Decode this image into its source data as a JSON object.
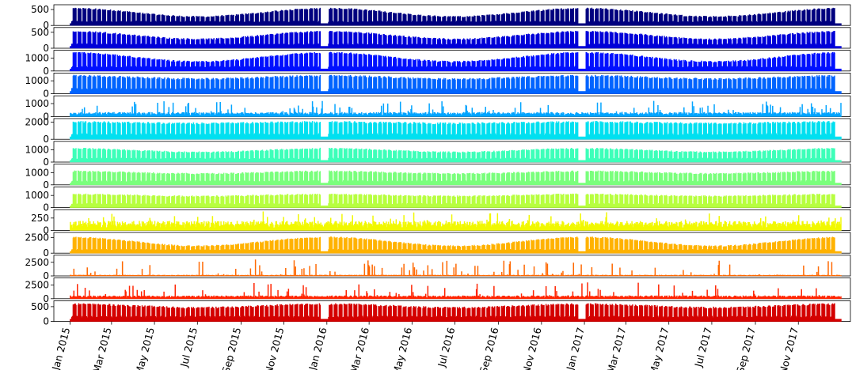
{
  "chart_data": {
    "type": "area",
    "x_start": "2015-01-01",
    "x_end": "2017-12-31",
    "x_tick_labels": [
      "Jan 2015",
      "Mar 2015",
      "May 2015",
      "Jul 2015",
      "Sep 2015",
      "Nov 2015",
      "Jan 2016",
      "Mar 2016",
      "May 2016",
      "Jul 2016",
      "Sep 2016",
      "Nov 2016",
      "Jan 2017",
      "Mar 2017",
      "May 2017",
      "Jul 2017",
      "Sep 2017",
      "Nov 2017"
    ],
    "x_tick_dates": [
      "2015-01-01",
      "2015-03-01",
      "2015-05-01",
      "2015-07-01",
      "2015-09-01",
      "2015-11-01",
      "2016-01-01",
      "2016-03-01",
      "2016-05-01",
      "2016-07-01",
      "2016-09-01",
      "2016-11-01",
      "2017-01-01",
      "2017-03-01",
      "2017-05-01",
      "2017-07-01",
      "2017-09-01",
      "2017-11-01"
    ],
    "grid": false,
    "panels": [
      {
        "color": "#00007f",
        "ylim": [
          0,
          650
        ],
        "yticks": [
          0,
          500
        ],
        "ytick_labels": [
          "0",
          "500"
        ],
        "base": 400,
        "seasonal": 130,
        "spiky": false
      },
      {
        "color": "#0000d8",
        "ylim": [
          0,
          650
        ],
        "yticks": [
          0,
          500
        ],
        "ytick_labels": [
          "0",
          "500"
        ],
        "base": 400,
        "seasonal": 120,
        "spiky": false
      },
      {
        "color": "#0010ff",
        "ylim": [
          0,
          1600
        ],
        "yticks": [
          0,
          1000
        ],
        "ytick_labels": [
          "0",
          "1000"
        ],
        "base": 1050,
        "seasonal": 350,
        "spiky": false
      },
      {
        "color": "#0064ff",
        "ylim": [
          0,
          1600
        ],
        "yticks": [
          0,
          1000
        ],
        "ytick_labels": [
          "0",
          "1000"
        ],
        "base": 1250,
        "seasonal": 120,
        "spiky": false
      },
      {
        "color": "#00a4ff",
        "ylim": [
          0,
          1600
        ],
        "yticks": [
          0,
          1000
        ],
        "ytick_labels": [
          "0",
          "1000"
        ],
        "base": 300,
        "seasonal": 60,
        "spiky": true,
        "spike_max": 1200
      },
      {
        "color": "#1fffd7",
        "ylim": [
          0,
          2400
        ],
        "yticks": [
          0,
          2000
        ],
        "ytick_labels": [
          "0",
          "2000"
        ],
        "base": 1900,
        "seasonal": 80,
        "spiky": false,
        "override_color": "#00e0f0"
      },
      {
        "color": "#3dffb9",
        "ylim": [
          0,
          1700
        ],
        "yticks": [
          0,
          1000
        ],
        "ytick_labels": [
          "0",
          "1000"
        ],
        "base": 950,
        "seasonal": 150,
        "spiky": false
      },
      {
        "color": "#7aff7c",
        "ylim": [
          0,
          1700
        ],
        "yticks": [
          0,
          1000
        ],
        "ytick_labels": [
          "0",
          "1000"
        ],
        "base": 1000,
        "seasonal": 100,
        "spiky": false
      },
      {
        "color": "#b7ff3f",
        "ylim": [
          0,
          1700
        ],
        "yticks": [
          0,
          1000
        ],
        "ytick_labels": [
          "0",
          "1000"
        ],
        "base": 1000,
        "seasonal": 80,
        "spiky": false
      },
      {
        "color": "#f1f800",
        "ylim": [
          0,
          420
        ],
        "yticks": [
          0,
          250
        ],
        "ytick_labels": [
          "0",
          "250"
        ],
        "base": 170,
        "seasonal": 30,
        "spiky": true,
        "spike_max": 380
      },
      {
        "color": "#ffb200",
        "ylim": [
          0,
          3300
        ],
        "yticks": [
          0,
          2500
        ],
        "ytick_labels": [
          "0",
          "2500"
        ],
        "base": 1800,
        "seasonal": 700,
        "spiky": false
      },
      {
        "color": "#ff6800",
        "ylim": [
          0,
          3800
        ],
        "yticks": [
          0,
          2500
        ],
        "ytick_labels": [
          "0",
          "2500"
        ],
        "base": 150,
        "seasonal": 80,
        "spiky": true,
        "spike_max": 3000
      },
      {
        "color": "#ff2400",
        "ylim": [
          0,
          3800
        ],
        "yticks": [
          0,
          2500
        ],
        "ytick_labels": [
          "0",
          "2500"
        ],
        "base": 500,
        "seasonal": 60,
        "spiky": true,
        "spike_max": 3000
      },
      {
        "color": "#d40000",
        "ylim": [
          0,
          700
        ],
        "yticks": [
          0,
          500
        ],
        "ytick_labels": [
          "0",
          "500"
        ],
        "base": 520,
        "seasonal": 60,
        "spiky": false
      }
    ]
  }
}
